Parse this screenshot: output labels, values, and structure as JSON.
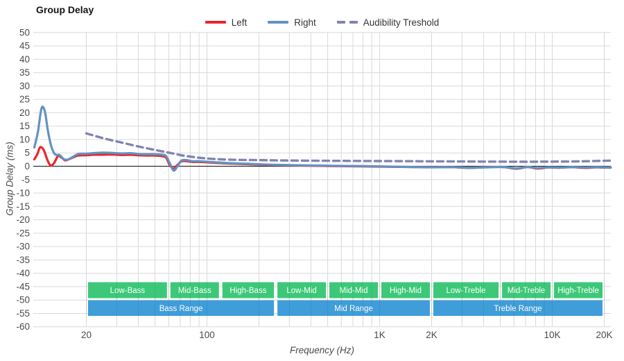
{
  "title": "Group Delay",
  "legend": {
    "items": [
      {
        "id": "left",
        "label": "Left"
      },
      {
        "id": "right",
        "label": "Right"
      },
      {
        "id": "threshold",
        "label": "Audibility Treshold"
      }
    ]
  },
  "colors": {
    "left": "#e8262b",
    "right": "#6292c3",
    "threshold": "#8184af",
    "grid": "#d9d9d9",
    "zero_axis": "#2e2e2e",
    "tick_text": "#4a4a4a",
    "band_sub": "#3cc878",
    "band_main": "#3f9dd9",
    "band_text": "#ffffff"
  },
  "chart_data": {
    "type": "line",
    "title": "Group Delay",
    "xlabel": "Frequency (Hz)",
    "ylabel": "Group Delay (ms)",
    "x_scale": "log",
    "xlim": [
      10,
      21900
    ],
    "ylim": [
      -60,
      50
    ],
    "y_tick_step": 5,
    "grid": true,
    "legend_position": "top-center",
    "x_ticks": [
      {
        "f": 20,
        "label": "20"
      },
      {
        "f": 100,
        "label": "100"
      },
      {
        "f": 1000,
        "label": "1K"
      },
      {
        "f": 2000,
        "label": "2K"
      },
      {
        "f": 10000,
        "label": "10K"
      },
      {
        "f": 20000,
        "label": "20K"
      }
    ],
    "series": [
      {
        "name": "Left",
        "style": "solid",
        "color_key": "left",
        "points": [
          [
            10,
            2.6
          ],
          [
            10.4,
            4.5
          ],
          [
            10.8,
            7.1
          ],
          [
            11.3,
            6.2
          ],
          [
            11.8,
            3.0
          ],
          [
            12.2,
            0.9
          ],
          [
            12.6,
            0.3
          ],
          [
            13.1,
            1.5
          ],
          [
            13.7,
            3.8
          ],
          [
            14.4,
            3.2
          ],
          [
            15.1,
            2.2
          ],
          [
            15.8,
            2.6
          ],
          [
            16.6,
            3.2
          ],
          [
            17.9,
            4.0
          ],
          [
            19,
            4.1
          ],
          [
            20,
            4.1
          ],
          [
            22,
            4.3
          ],
          [
            25,
            4.3
          ],
          [
            28,
            4.4
          ],
          [
            32,
            4.2
          ],
          [
            36,
            4.3
          ],
          [
            40,
            4.1
          ],
          [
            45,
            4.0
          ],
          [
            50,
            4.0
          ],
          [
            55,
            3.8
          ],
          [
            58,
            3.2
          ],
          [
            61,
            0.3
          ],
          [
            64,
            -0.8
          ],
          [
            67,
            0.3
          ],
          [
            71,
            1.8
          ],
          [
            76,
            1.9
          ],
          [
            82,
            1.6
          ],
          [
            90,
            1.6
          ],
          [
            105,
            1.4
          ],
          [
            125,
            1.1
          ],
          [
            150,
            0.9
          ],
          [
            185,
            0.7
          ],
          [
            230,
            0.5
          ],
          [
            300,
            0.35
          ],
          [
            400,
            0.2
          ],
          [
            520,
            0.1
          ],
          [
            700,
            0.0
          ],
          [
            900,
            -0.1
          ],
          [
            1200,
            -0.2
          ],
          [
            1600,
            -0.3
          ],
          [
            2000,
            -0.35
          ],
          [
            2600,
            -0.3
          ],
          [
            3300,
            -0.6
          ],
          [
            4200,
            -0.35
          ],
          [
            5200,
            -0.3
          ],
          [
            6200,
            -0.9
          ],
          [
            7200,
            -0.3
          ],
          [
            8200,
            -0.85
          ],
          [
            9500,
            -0.45
          ],
          [
            11000,
            -0.55
          ],
          [
            13000,
            -0.35
          ],
          [
            15500,
            -0.6
          ],
          [
            18000,
            -0.4
          ],
          [
            20000,
            -0.5
          ],
          [
            21800,
            -0.5
          ]
        ]
      },
      {
        "name": "Right",
        "style": "solid",
        "color_key": "right",
        "points": [
          [
            10,
            7.0
          ],
          [
            10.5,
            13.0
          ],
          [
            11,
            21.7
          ],
          [
            11.5,
            20.5
          ],
          [
            12,
            13.0
          ],
          [
            12.6,
            7.0
          ],
          [
            13.2,
            4.4
          ],
          [
            14,
            4.2
          ],
          [
            14.8,
            2.7
          ],
          [
            15.6,
            2.5
          ],
          [
            16.5,
            3.3
          ],
          [
            17.9,
            4.6
          ],
          [
            19,
            4.7
          ],
          [
            20,
            4.7
          ],
          [
            22,
            4.9
          ],
          [
            25,
            5.1
          ],
          [
            28,
            5.0
          ],
          [
            32,
            4.8
          ],
          [
            36,
            4.9
          ],
          [
            40,
            4.6
          ],
          [
            45,
            4.5
          ],
          [
            50,
            4.5
          ],
          [
            55,
            4.3
          ],
          [
            58,
            3.8
          ],
          [
            61,
            1.0
          ],
          [
            64,
            -1.6
          ],
          [
            67,
            -0.3
          ],
          [
            71,
            2.1
          ],
          [
            76,
            2.3
          ],
          [
            82,
            1.9
          ],
          [
            90,
            1.9
          ],
          [
            105,
            1.6
          ],
          [
            125,
            1.3
          ],
          [
            150,
            1.05
          ],
          [
            185,
            0.85
          ],
          [
            230,
            0.6
          ],
          [
            300,
            0.45
          ],
          [
            400,
            0.3
          ],
          [
            520,
            0.2
          ],
          [
            700,
            0.1
          ],
          [
            900,
            0.0
          ],
          [
            1200,
            -0.15
          ],
          [
            1600,
            -0.3
          ],
          [
            2000,
            -0.4
          ],
          [
            2600,
            -0.35
          ],
          [
            3300,
            -0.55
          ],
          [
            4200,
            -0.4
          ],
          [
            5200,
            -0.25
          ],
          [
            6200,
            -0.8
          ],
          [
            7200,
            -0.25
          ],
          [
            8200,
            -0.7
          ],
          [
            9500,
            -0.4
          ],
          [
            11000,
            -0.5
          ],
          [
            13000,
            -0.3
          ],
          [
            15500,
            -0.45
          ],
          [
            18000,
            -0.35
          ],
          [
            20000,
            -0.45
          ],
          [
            21800,
            -0.4
          ]
        ]
      },
      {
        "name": "Audibility Treshold",
        "style": "dashed",
        "color_key": "threshold",
        "points": [
          [
            20,
            12.3
          ],
          [
            25,
            10.5
          ],
          [
            30,
            9.3
          ],
          [
            40,
            7.4
          ],
          [
            50,
            6.1
          ],
          [
            60,
            5.1
          ],
          [
            70,
            4.2
          ],
          [
            80,
            3.6
          ],
          [
            90,
            3.2
          ],
          [
            100,
            2.9
          ],
          [
            120,
            2.6
          ],
          [
            150,
            2.4
          ],
          [
            200,
            2.3
          ],
          [
            300,
            2.15
          ],
          [
            500,
            2.05
          ],
          [
            700,
            2.0
          ],
          [
            1000,
            1.95
          ],
          [
            1500,
            1.9
          ],
          [
            2000,
            1.85
          ],
          [
            3000,
            1.8
          ],
          [
            4000,
            1.75
          ],
          [
            6000,
            1.7
          ],
          [
            8000,
            1.72
          ],
          [
            10000,
            1.75
          ],
          [
            13000,
            1.8
          ],
          [
            16000,
            1.9
          ],
          [
            20000,
            2.05
          ],
          [
            21800,
            2.1
          ]
        ]
      }
    ],
    "bands": {
      "sub": [
        {
          "label": "Low-Bass",
          "from": 20,
          "to": 60
        },
        {
          "label": "Mid-Bass",
          "from": 60,
          "to": 120
        },
        {
          "label": "High-Bass",
          "from": 120,
          "to": 250
        },
        {
          "label": "Low-Mid",
          "from": 250,
          "to": 500
        },
        {
          "label": "Mid-Mid",
          "from": 500,
          "to": 1000
        },
        {
          "label": "High-Mid",
          "from": 1000,
          "to": 2000
        },
        {
          "label": "Low-Treble",
          "from": 2000,
          "to": 5000
        },
        {
          "label": "Mid-Treble",
          "from": 5000,
          "to": 10000
        },
        {
          "label": "High-Treble",
          "from": 10000,
          "to": 20000
        }
      ],
      "main": [
        {
          "label": "Bass Range",
          "from": 20,
          "to": 250
        },
        {
          "label": "Mid Range",
          "from": 250,
          "to": 2000
        },
        {
          "label": "Treble Range",
          "from": 2000,
          "to": 20000
        }
      ]
    }
  }
}
